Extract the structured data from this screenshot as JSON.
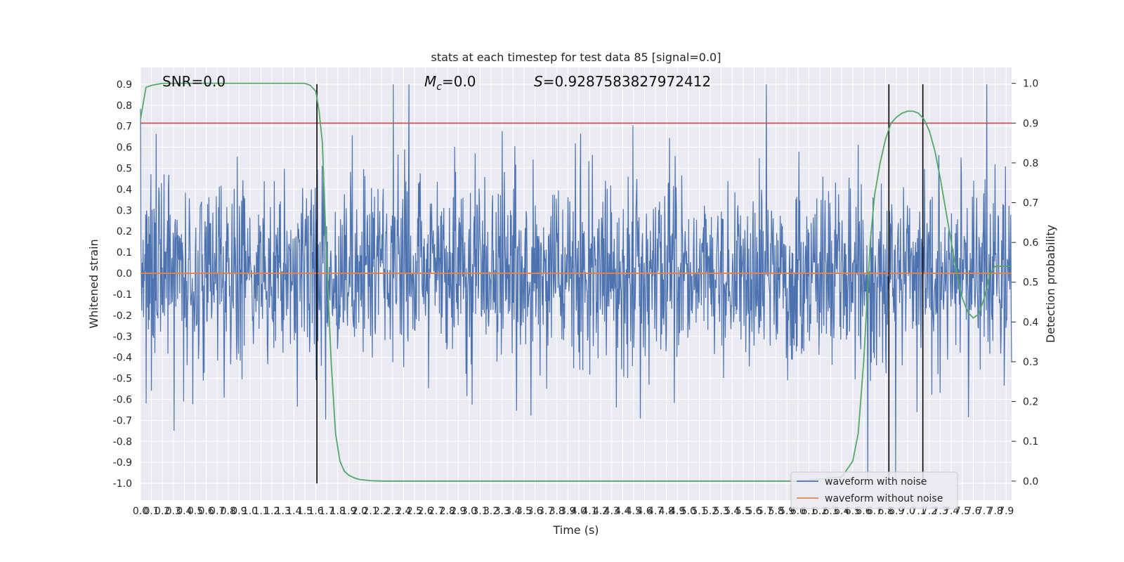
{
  "chart_data": {
    "type": "line",
    "title": "stats at each timestep for test data 85 [signal=0.0]",
    "xlabel": "Time (s)",
    "ylabel": "Whitened strain",
    "y2label": "Detection probability",
    "xlim": [
      0.0,
      7.95
    ],
    "ylim": [
      -1.08,
      0.98
    ],
    "y2lim": [
      -0.048,
      1.04
    ],
    "x_ticks": [
      "0.0",
      "0.1",
      "0.2",
      "0.3",
      "0.4",
      "0.5",
      "0.6",
      "0.7",
      "0.8",
      "0.9",
      "1.0",
      "1.1",
      "1.2",
      "1.3",
      "1.4",
      "1.5",
      "1.6",
      "1.7",
      "1.8",
      "1.9",
      "2.0",
      "2.1",
      "2.2",
      "2.3",
      "2.4",
      "2.5",
      "2.6",
      "2.7",
      "2.8",
      "2.9",
      "3.0",
      "3.1",
      "3.2",
      "3.3",
      "3.4",
      "3.5",
      "3.6",
      "3.7",
      "3.8",
      "3.9",
      "4.0",
      "4.1",
      "4.2",
      "4.3",
      "4.4",
      "4.5",
      "4.6",
      "4.7",
      "4.8",
      "4.9",
      "5.0",
      "5.1",
      "5.2",
      "5.3",
      "5.4",
      "5.5",
      "5.6",
      "5.7",
      "5.8",
      "5.9",
      "6.0",
      "6.1",
      "6.2",
      "6.3",
      "6.4",
      "6.5",
      "6.6",
      "6.7",
      "6.8",
      "6.9",
      "7.0",
      "7.1",
      "7.2",
      "7.3",
      "7.4",
      "7.5",
      "7.6",
      "7.7",
      "7.8",
      "7.9"
    ],
    "y_ticks": [
      "0.9",
      "0.8",
      "0.7",
      "0.6",
      "0.5",
      "0.4",
      "0.3",
      "0.2",
      "0.1",
      "0.0",
      "-0.1",
      "-0.2",
      "-0.3",
      "-0.4",
      "-0.5",
      "-0.6",
      "-0.7",
      "-0.8",
      "-0.9",
      "-1.0"
    ],
    "y2_ticks": [
      "1.0",
      "0.9",
      "0.8",
      "0.7",
      "0.6",
      "0.5",
      "0.4",
      "0.3",
      "0.2",
      "0.1",
      "0.0"
    ],
    "annotations": {
      "snr": "SNR=0.0",
      "mc_symbol": "M",
      "mc_sub": "c",
      "mc_value": "=0.0",
      "s_symbol": "S",
      "s_value": "=0.9287583827972412"
    },
    "threshold_line": {
      "axis": "y2",
      "value": 0.9,
      "color": "#c44e52"
    },
    "vertical_lines": {
      "x": [
        1.61,
        6.83,
        7.14
      ],
      "y_range": [
        -1.0,
        0.9
      ],
      "color": "#000000"
    },
    "series": [
      {
        "name": "waveform with noise",
        "color": "#4c72b0",
        "description_range": [
          -0.98,
          0.9
        ],
        "noise": {
          "n_samples": 2000,
          "seed": 85,
          "sigma": 0.22,
          "clip": [
            -0.98,
            0.9
          ]
        }
      },
      {
        "name": "waveform without noise",
        "color": "#dd8452",
        "constant": 0.0
      },
      {
        "name": "detection probability",
        "axis": "y2",
        "color": "#55a868",
        "x": [
          0.0,
          0.05,
          0.1,
          0.2,
          0.3,
          0.5,
          0.8,
          1.0,
          1.2,
          1.4,
          1.5,
          1.55,
          1.6,
          1.63,
          1.66,
          1.7,
          1.74,
          1.78,
          1.82,
          1.86,
          1.9,
          1.95,
          2.0,
          2.1,
          2.2,
          2.3,
          2.5,
          3.0,
          4.0,
          5.0,
          6.0,
          6.4,
          6.5,
          6.55,
          6.6,
          6.63,
          6.66,
          6.7,
          6.75,
          6.8,
          6.85,
          6.9,
          6.95,
          7.0,
          7.05,
          7.1,
          7.15,
          7.2,
          7.25,
          7.3,
          7.35,
          7.4,
          7.45,
          7.5,
          7.55,
          7.6,
          7.65,
          7.7,
          7.75,
          7.8,
          7.85,
          7.9,
          7.95
        ],
        "y": [
          0.91,
          0.99,
          0.995,
          1.0,
          1.0,
          1.0,
          1.0,
          1.0,
          1.0,
          1.0,
          1.0,
          0.995,
          0.98,
          0.93,
          0.85,
          0.55,
          0.3,
          0.12,
          0.05,
          0.025,
          0.015,
          0.008,
          0.004,
          0.001,
          0.0,
          0.0,
          0.0,
          0.0,
          0.0,
          0.0,
          0.0,
          0.01,
          0.05,
          0.12,
          0.3,
          0.45,
          0.6,
          0.72,
          0.8,
          0.86,
          0.9,
          0.915,
          0.925,
          0.93,
          0.93,
          0.925,
          0.91,
          0.88,
          0.83,
          0.76,
          0.68,
          0.6,
          0.52,
          0.46,
          0.425,
          0.41,
          0.42,
          0.46,
          0.52,
          0.54,
          0.54,
          0.54,
          0.54
        ]
      }
    ],
    "legend": {
      "loc": "lower-right",
      "entries": [
        "waveform with noise",
        "waveform without noise"
      ]
    },
    "style": {
      "plot_bg": "#eaeaf2",
      "grid": true,
      "grid_color": "#ffffff"
    }
  }
}
